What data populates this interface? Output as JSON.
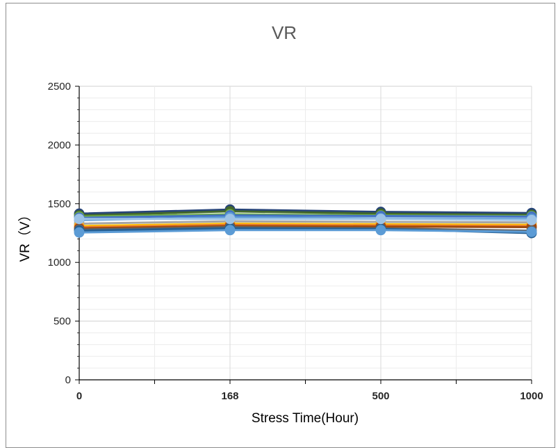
{
  "chart_data": {
    "type": "line",
    "title": "VR",
    "xlabel": "Stress Time(Hour)",
    "ylabel": "VR（V）",
    "categories": [
      "0",
      "168",
      "500",
      "1000"
    ],
    "ylim": [
      0,
      2500
    ],
    "yticks": [
      0,
      500,
      1000,
      1500,
      2000,
      2500
    ],
    "grid": true,
    "legend": "none",
    "series": [
      {
        "color": "#264478",
        "values": [
          1415,
          1450,
          1430,
          1420
        ]
      },
      {
        "color": "#43682b",
        "values": [
          1400,
          1435,
          1415,
          1405
        ]
      },
      {
        "color": "#70ad47",
        "values": [
          1390,
          1410,
          1400,
          1395
        ]
      },
      {
        "color": "#4472c4",
        "values": [
          1380,
          1400,
          1395,
          1390
        ]
      },
      {
        "color": "#5b9bd5",
        "values": [
          1360,
          1385,
          1375,
          1370
        ]
      },
      {
        "color": "#a5a5a5",
        "values": [
          1330,
          1350,
          1345,
          1340
        ]
      },
      {
        "color": "#ffc000",
        "values": [
          1310,
          1330,
          1325,
          1320
        ]
      },
      {
        "color": "#ed7d31",
        "values": [
          1300,
          1320,
          1315,
          1310
        ]
      },
      {
        "color": "#9e480e",
        "values": [
          1290,
          1310,
          1305,
          1300
        ]
      },
      {
        "color": "#636363",
        "values": [
          1280,
          1300,
          1290,
          1270
        ]
      },
      {
        "color": "#255e91",
        "values": [
          1270,
          1290,
          1285,
          1250
        ]
      },
      {
        "color": "#5b9bd5",
        "values": [
          1255,
          1275,
          1275,
          1260
        ]
      },
      {
        "color": "#9dc3e6",
        "values": [
          1370,
          1370,
          1370,
          1360
        ]
      }
    ]
  }
}
